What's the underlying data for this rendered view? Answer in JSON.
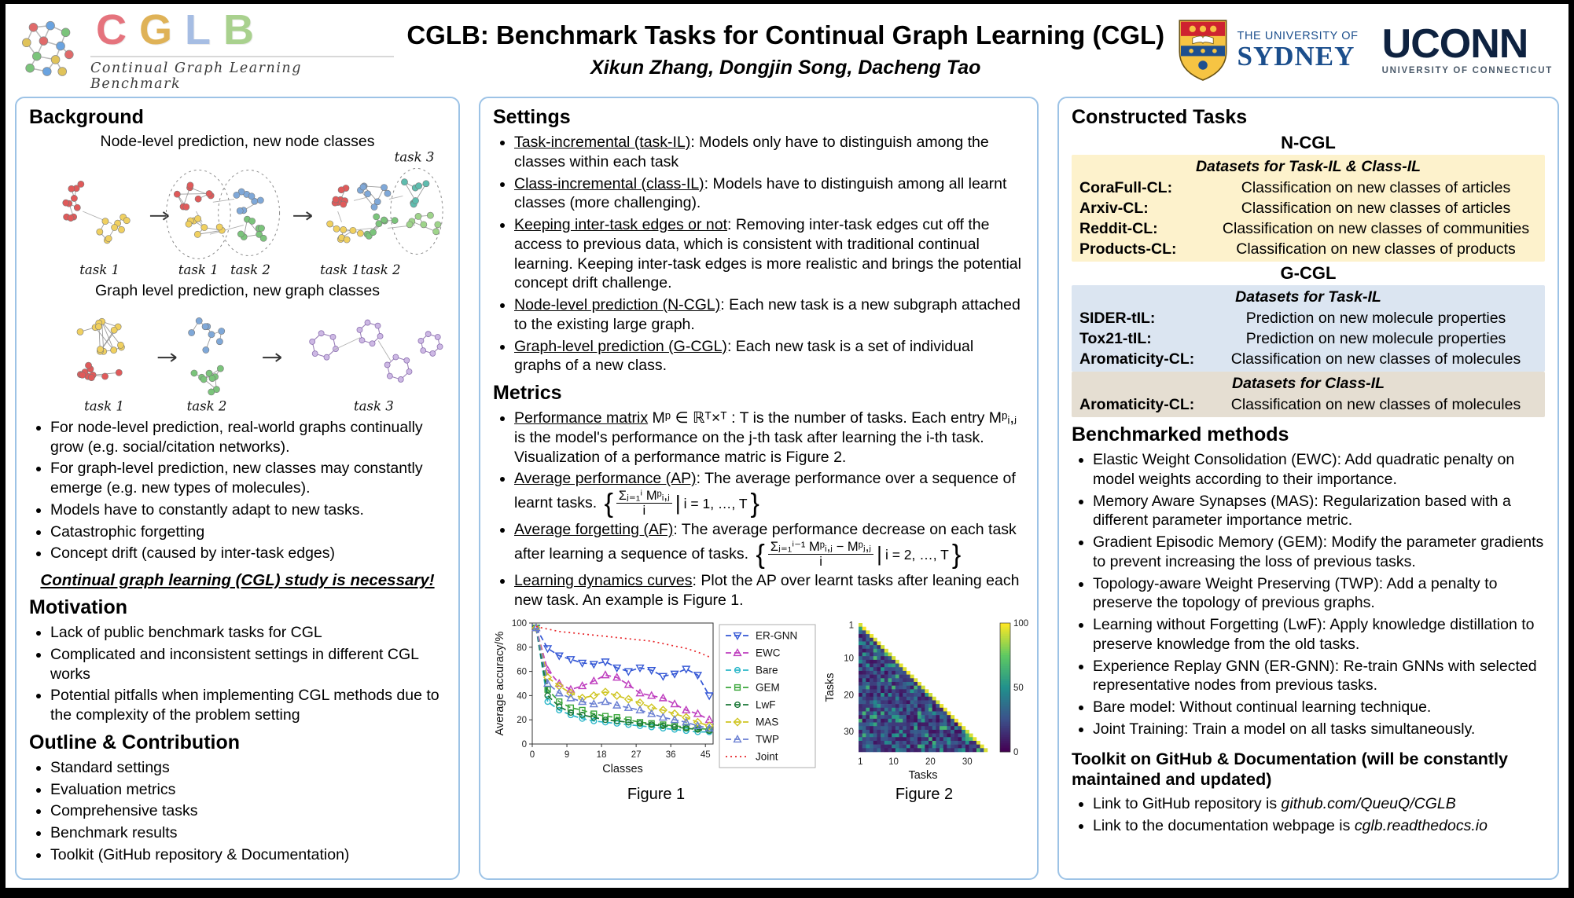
{
  "header": {
    "logo": {
      "letters": [
        {
          "ch": "C",
          "color": "#e5737d"
        },
        {
          "ch": "G",
          "color": "#dfb257"
        },
        {
          "ch": "L",
          "color": "#a6bde3"
        },
        {
          "ch": "B",
          "color": "#a9d18e"
        }
      ],
      "subtitle": "Continual Graph Learning Benchmark"
    },
    "title": "CGLB: Benchmark Tasks for Continual Graph Learning (CGL)",
    "authors": "Xikun Zhang, Dongjin Song, Dacheng Tao",
    "sydney": {
      "line1": "THE UNIVERSITY OF",
      "line2": "SYDNEY"
    },
    "uconn": {
      "name": "UCONN",
      "sub": "UNIVERSITY OF CONNECTICUT"
    }
  },
  "palette": {
    "column_border": "#9dc3e6",
    "ncgl_bg": "#fdf2cc",
    "gcgl_taskil_bg": "#dbe5f1",
    "gcgl_classil_bg": "#e5ded2",
    "sydney_blue": "#1b4e8c",
    "uconn_navy": "#0e2240"
  },
  "background": {
    "heading": "Background",
    "diagram": {
      "node_caption": "Node-level prediction, new node classes",
      "graph_caption": "Graph level prediction, new graph classes",
      "task1": "task 1",
      "task2": "task 2",
      "task3": "task 3"
    },
    "bullets": [
      "For node-level prediction, real-world graphs continually grow (e.g. social/citation networks).",
      "For graph-level prediction, new classes may constantly emerge (e.g. new types of molecules).",
      "Models have to constantly adapt to new tasks.",
      "Catastrophic forgetting",
      "Concept drift (caused by inter-task edges)"
    ],
    "callout": "Continual graph learning (CGL) study is necessary!"
  },
  "motivation": {
    "heading": "Motivation",
    "bullets": [
      "Lack of public benchmark tasks for CGL",
      "Complicated and inconsistent settings in different CGL works",
      "Potential pitfalls when implementing CGL methods due to the complexity of the problem setting"
    ]
  },
  "outline": {
    "heading": "Outline & Contribution",
    "bullets": [
      "Standard settings",
      "Evaluation metrics",
      "Comprehensive tasks",
      "Benchmark results",
      "Toolkit (GitHub repository & Documentation)"
    ]
  },
  "settings": {
    "heading": "Settings",
    "items": [
      {
        "term": "Task-incremental (task-IL)",
        "text": ": Models only have to distinguish among the classes within each task"
      },
      {
        "term": "Class-incremental (class-IL)",
        "text": ": Models have to distinguish among all learnt classes (more challenging)."
      },
      {
        "term": "Keeping inter-task edges or not",
        "text": ": Removing inter-task edges cut off the access to previous data, which is consistent with traditional continual learning. Keeping inter-task edges is more realistic and brings the potential concept drift challenge."
      },
      {
        "term": "Node-level prediction (N-CGL)",
        "text": ": Each new task is a new subgraph attached to the existing large graph."
      },
      {
        "term": "Graph-level prediction (G-CGL)",
        "text": ": Each new task is a set of individual graphs of a new class."
      }
    ]
  },
  "metrics": {
    "heading": "Metrics",
    "items": [
      {
        "term": "Performance matrix",
        "text": " Mᵖ ∈ ℝᵀ×ᵀ : T is the number of tasks. Each entry Mᵖᵢ,ⱼ is the model's performance on the j-th task after learning the i-th task. Visualization of a performance matric is Figure 2."
      },
      {
        "term": "Average performance (AP)",
        "text": ": The average performance over a sequence of learnt tasks.",
        "formula": {
          "open": "{",
          "numerator": "Σⱼ₌₁ⁱ Mᵖᵢ,ⱼ",
          "denominator": "i",
          "divider": "|",
          "condition": "i = 1, …, T",
          "close": "}"
        }
      },
      {
        "term": "Average forgetting (AF)",
        "text": ": The average performance decrease on each task after learning a sequence of tasks.",
        "formula": {
          "open": "{",
          "numerator": "Σⱼ₌₁ⁱ⁻¹ Mᵖᵢ,ⱼ − Mᵖⱼ,ⱼ",
          "denominator": "i",
          "divider": "|",
          "condition": "i = 2, …, T",
          "close": "}"
        }
      },
      {
        "term": "Learning dynamics curves",
        "text": ": Plot the AP over learnt tasks after leaning each new task. An example is Figure 1."
      }
    ]
  },
  "chart_data": [
    {
      "id": "figure1",
      "type": "line",
      "title": "",
      "xlabel": "Classes",
      "ylabel": "Average accuracy/%",
      "xlim": [
        0,
        47
      ],
      "ylim": [
        0,
        100
      ],
      "x_ticks": [
        0,
        9,
        18,
        27,
        36,
        45
      ],
      "y_ticks": [
        0,
        20,
        40,
        60,
        80,
        100
      ],
      "legend_position": "right",
      "x": [
        1,
        4,
        7,
        10,
        13,
        16,
        19,
        22,
        25,
        28,
        31,
        34,
        37,
        40,
        43,
        46
      ],
      "series": [
        {
          "name": "ER-GNN",
          "color": "#3457d5",
          "dash": "7,4",
          "marker": "triangle-down",
          "values": [
            96,
            79,
            73,
            70,
            67,
            66,
            68,
            63,
            60,
            63,
            61,
            56,
            58,
            62,
            57,
            40
          ]
        },
        {
          "name": "EWC",
          "color": "#bf3fbf",
          "dash": "7,4",
          "marker": "triangle-up",
          "values": [
            96,
            61,
            50,
            45,
            48,
            52,
            57,
            55,
            49,
            42,
            40,
            38,
            33,
            28,
            25,
            20
          ]
        },
        {
          "name": "Bare",
          "color": "#29b6c8",
          "dash": "7,4",
          "marker": "circle",
          "values": [
            96,
            35,
            28,
            24,
            21,
            19,
            18,
            17,
            16,
            15,
            14,
            13,
            12,
            11,
            10,
            10
          ]
        },
        {
          "name": "GEM",
          "color": "#3aa63a",
          "dash": "7,4",
          "marker": "square",
          "values": [
            96,
            45,
            35,
            30,
            28,
            25,
            23,
            22,
            20,
            18,
            17,
            16,
            15,
            14,
            13,
            12
          ]
        },
        {
          "name": "LwF",
          "color": "#1b7837",
          "dash": "7,4",
          "marker": "circle",
          "values": [
            96,
            40,
            31,
            26,
            24,
            22,
            20,
            19,
            18,
            17,
            16,
            15,
            14,
            13,
            12,
            11
          ]
        },
        {
          "name": "MAS",
          "color": "#cfc522",
          "dash": "7,4",
          "marker": "diamond",
          "values": [
            96,
            55,
            48,
            42,
            38,
            40,
            43,
            40,
            37,
            34,
            30,
            28,
            25,
            22,
            18,
            15
          ]
        },
        {
          "name": "TWP",
          "color": "#6a7fd2",
          "dash": "7,4",
          "marker": "triangle-up",
          "values": [
            96,
            50,
            42,
            38,
            35,
            33,
            35,
            32,
            30,
            28,
            25,
            22,
            20,
            18,
            15,
            13
          ]
        },
        {
          "name": "Joint",
          "color": "#e8262a",
          "dash": "2,4",
          "marker": "none",
          "values": [
            97,
            95,
            93,
            92,
            91,
            90,
            89,
            88,
            87,
            86,
            85,
            83,
            81,
            79,
            76,
            72
          ]
        }
      ],
      "caption": "Figure 1"
    },
    {
      "id": "figure2",
      "type": "heatmap",
      "xlabel": "Tasks",
      "ylabel": "Tasks",
      "n_tasks": 35,
      "x_ticks": [
        1,
        10,
        20,
        30
      ],
      "y_ticks": [
        1,
        10,
        20,
        30
      ],
      "colorbar": {
        "min": 0,
        "max": 100,
        "ticks": [
          100,
          50,
          0
        ]
      },
      "colormap": "viridis",
      "pattern": "lower-triangular performance matrix; diagonal ~95-100, off-diagonal mostly 5-40 with scattered mid values",
      "seed": 12,
      "caption": "Figure 2"
    }
  ],
  "constructed_tasks": {
    "heading": "Constructed Tasks",
    "ncgl_title": "N-CGL",
    "ncgl": {
      "header": "Datasets for Task-IL & Class-IL",
      "rows": [
        {
          "name": "CoraFull-CL:",
          "desc": "Classification on new classes of articles"
        },
        {
          "name": "Arxiv-CL:",
          "desc": "Classification on new classes of articles"
        },
        {
          "name": "Reddit-CL:",
          "desc": "Classification on new classes of communities"
        },
        {
          "name": "Products-CL:",
          "desc": "Classification on new classes of products"
        }
      ]
    },
    "gcgl_title": "G-CGL",
    "gcgl_taskil": {
      "header": "Datasets for Task-IL",
      "rows": [
        {
          "name": "SIDER-tIL:",
          "desc": "Prediction on new molecule properties"
        },
        {
          "name": "Tox21-tIL:",
          "desc": "Prediction on new molecule properties"
        },
        {
          "name": "Aromaticity-CL:",
          "desc": "Classification on new classes of molecules"
        }
      ]
    },
    "gcgl_classil": {
      "header": "Datasets for Class-IL",
      "rows": [
        {
          "name": "Aromaticity-CL:",
          "desc": "Classification on new classes of molecules"
        }
      ]
    }
  },
  "benchmarked": {
    "heading": "Benchmarked methods",
    "bullets": [
      "Elastic Weight Consolidation (EWC): Add quadratic penalty on model weights according to their importance.",
      "Memory Aware Synapses (MAS): Regularization based with a different parameter importance metric.",
      "Gradient Episodic Memory (GEM): Modify the parameter gradients to prevent increasing the loss of previous tasks.",
      "Topology-aware Weight Preserving (TWP): Add a penalty to preserve the topology of previous graphs.",
      "Learning without Forgetting (LwF): Apply knowledge distillation to preserve knowledge from the old tasks.",
      "Experience Replay GNN (ER-GNN): Re-train GNNs with selected representative nodes from previous tasks.",
      "Bare model: Without continual learning technique.",
      "Joint Training: Train a model on all tasks simultaneously."
    ]
  },
  "toolkit": {
    "heading": "Toolkit on GitHub & Documentation (will be constantly maintained and updated)",
    "items": [
      {
        "prefix": "Link to GitHub repository is ",
        "link": "github.com/QueuQ/CGLB"
      },
      {
        "prefix": "Link to the documentation webpage is ",
        "link": "cglb.readthedocs.io"
      }
    ]
  }
}
